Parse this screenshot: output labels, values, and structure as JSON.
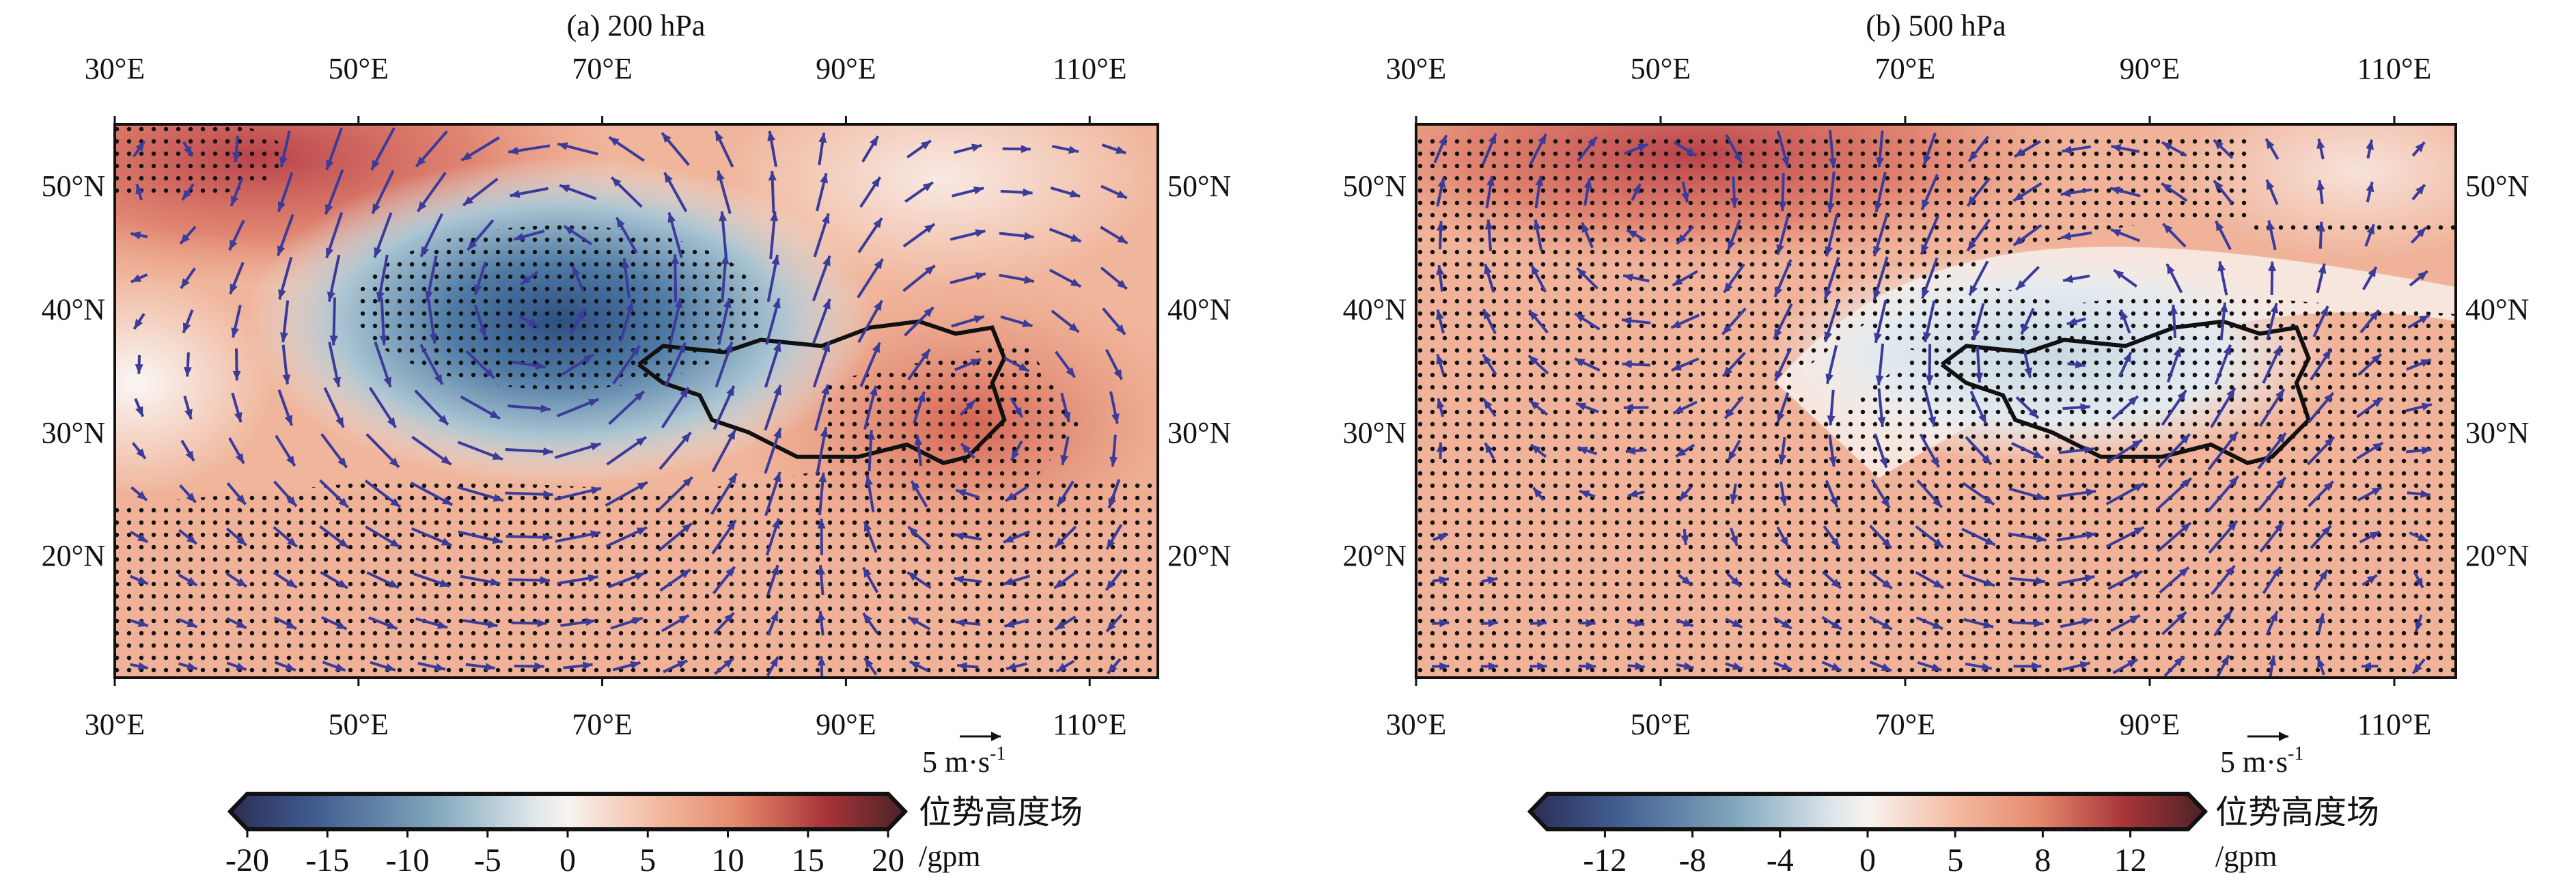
{
  "panels": [
    {
      "title": "(a) 200 hPa",
      "lon_labels": [
        "30°E",
        "50°E",
        "70°E",
        "90°E",
        "110°E"
      ],
      "lat_labels": [
        "50°N",
        "40°N",
        "30°N",
        "20°N"
      ],
      "ref_vector": {
        "value": "5 m·s",
        "exp": "-1"
      },
      "colorbar": {
        "ticks": [
          "-20",
          "-15",
          "-10",
          "-5",
          "0",
          "5",
          "10",
          "15",
          "20"
        ],
        "label": "位势高度场",
        "unit": "/gpm"
      }
    },
    {
      "title": "(b) 500 hPa",
      "lon_labels": [
        "30°E",
        "50°E",
        "70°E",
        "90°E",
        "110°E"
      ],
      "lat_labels": [
        "50°N",
        "40°N",
        "30°N",
        "20°N"
      ],
      "ref_vector": {
        "value": "5 m·s",
        "exp": "-1"
      },
      "colorbar": {
        "ticks": [
          "-12",
          "-8",
          "-4",
          "0",
          "5",
          "8",
          "12"
        ],
        "label": "位势高度场",
        "unit": "/gpm"
      }
    }
  ],
  "colors": {
    "vector": "#3b3b9a",
    "dot": "#111111",
    "plateau": "#111111"
  }
}
